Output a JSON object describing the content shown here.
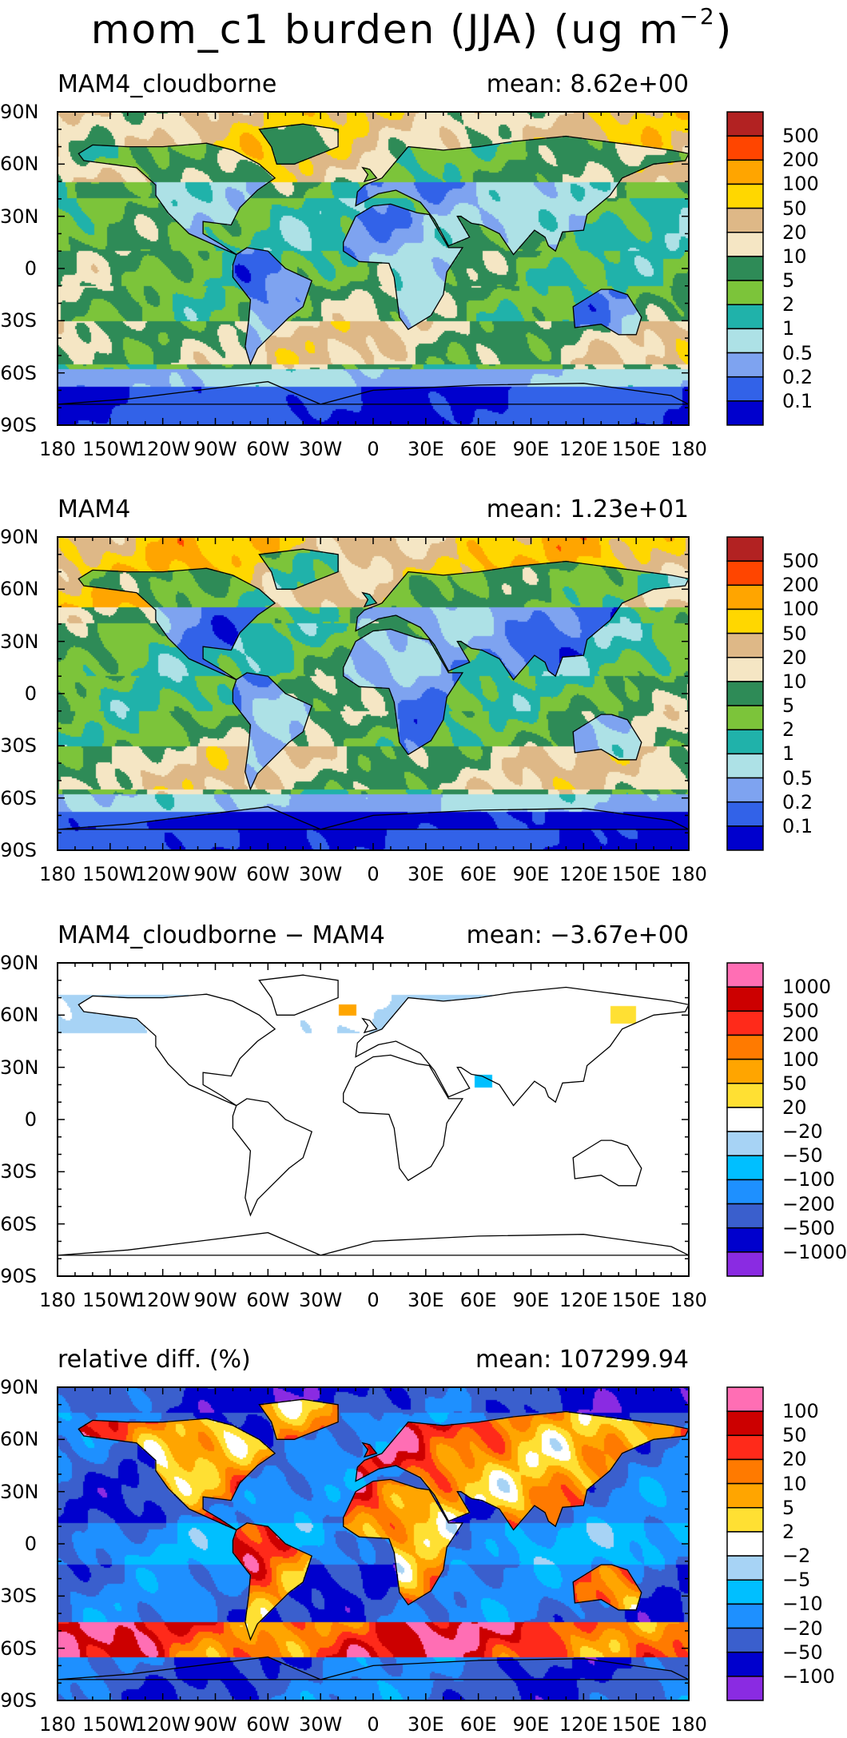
{
  "title": {
    "text": "mom_c1 burden (JJA) (ug m",
    "exponent": "−2",
    "close": ")"
  },
  "colors": {
    "burden": [
      "#0000CD",
      "#3262E8",
      "#7EA3F0",
      "#ADE1E6",
      "#20B2AA",
      "#7CC43A",
      "#2E8B57",
      "#F5E6C4",
      "#DEB887",
      "#FFD700",
      "#FFA500",
      "#FF4500",
      "#B22222"
    ],
    "diff": [
      "#8A2BE2",
      "#0000CD",
      "#3A5FCD",
      "#1E90FF",
      "#00BFFF",
      "#A7D3F5",
      "#FFFFFF",
      "#FFE033",
      "#FFA500",
      "#FF7A00",
      "#FF2A1A",
      "#CC0000",
      "#FF6EB4"
    ]
  },
  "chart_data": [
    {
      "type": "heatmap",
      "title": "MAM4_cloudborne",
      "mean": "mean: 8.62e+00",
      "lat_ticks": [
        "90N",
        "60N",
        "30N",
        "0",
        "30S",
        "60S",
        "90S"
      ],
      "lon_ticks": [
        "180",
        "150W",
        "120W",
        "90W",
        "60W",
        "30W",
        "0",
        "30E",
        "60E",
        "90E",
        "120E",
        "150E",
        "180"
      ],
      "colorbar": [
        "500",
        "200",
        "100",
        "50",
        "20",
        "10",
        "5",
        "2",
        "1",
        "0.5",
        "0.2",
        "0.1"
      ],
      "palette": "burden",
      "field": "cloudborne"
    },
    {
      "type": "heatmap",
      "title": "MAM4",
      "mean": "mean: 1.23e+01",
      "lat_ticks": [
        "90N",
        "60N",
        "30N",
        "0",
        "30S",
        "60S",
        "90S"
      ],
      "lon_ticks": [
        "180",
        "150W",
        "120W",
        "90W",
        "60W",
        "30W",
        "0",
        "30E",
        "60E",
        "90E",
        "120E",
        "150E",
        "180"
      ],
      "colorbar": [
        "500",
        "200",
        "100",
        "50",
        "20",
        "10",
        "5",
        "2",
        "1",
        "0.5",
        "0.2",
        "0.1"
      ],
      "palette": "burden",
      "field": "mam4"
    },
    {
      "type": "heatmap",
      "title": "MAM4_cloudborne − MAM4",
      "mean": "mean: −3.67e+00",
      "lat_ticks": [
        "90N",
        "60N",
        "30N",
        "0",
        "30S",
        "60S",
        "90S"
      ],
      "lon_ticks": [
        "180",
        "150W",
        "120W",
        "90W",
        "60W",
        "30W",
        "0",
        "30E",
        "60E",
        "90E",
        "120E",
        "150E",
        "180"
      ],
      "colorbar": [
        "1000",
        "500",
        "200",
        "100",
        "50",
        "20",
        "−20",
        "−50",
        "−100",
        "−200",
        "−500",
        "−1000"
      ],
      "palette": "diff",
      "field": "diff"
    },
    {
      "type": "heatmap",
      "title": "relative diff. (%)",
      "mean": "mean: 107299.94",
      "lat_ticks": [
        "90N",
        "60N",
        "30N",
        "0",
        "30S",
        "60S",
        "90S"
      ],
      "lon_ticks": [
        "180",
        "150W",
        "120W",
        "90W",
        "60W",
        "30W",
        "0",
        "30E",
        "60E",
        "90E",
        "120E",
        "150E",
        "180"
      ],
      "colorbar": [
        "100",
        "50",
        "20",
        "10",
        "5",
        "2",
        "−2",
        "−5",
        "−10",
        "−20",
        "−50",
        "−100"
      ],
      "palette": "diff",
      "field": "rel"
    }
  ]
}
